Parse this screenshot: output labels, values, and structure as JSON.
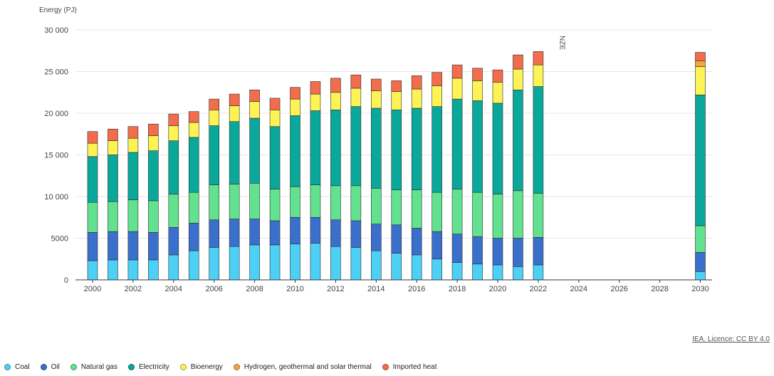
{
  "chart_data": {
    "type": "bar",
    "stacked": true,
    "ylabel": "Energy (PJ)",
    "ylim": [
      0,
      30000
    ],
    "ytick_values": [
      0,
      5000,
      10000,
      15000,
      20000,
      25000,
      30000
    ],
    "ytick_labels": [
      "0",
      "5000",
      "10 000",
      "15 000",
      "20 000",
      "25 000",
      "30 000"
    ],
    "xtick_values": [
      2000,
      2002,
      2004,
      2006,
      2008,
      2010,
      2012,
      2014,
      2016,
      2018,
      2020,
      2022,
      2024,
      2026,
      2028,
      2030
    ],
    "xtick_labels": [
      "2000",
      "2002",
      "2004",
      "2006",
      "2008",
      "2010",
      "2012",
      "2014",
      "2016",
      "2018",
      "2020",
      "2022",
      "2024",
      "2026",
      "2028",
      "2030"
    ],
    "xlim": [
      2000,
      2030
    ],
    "annotation": {
      "text": "NZE",
      "x": 2023
    },
    "categories": [
      2000,
      2001,
      2002,
      2003,
      2004,
      2005,
      2006,
      2007,
      2008,
      2009,
      2010,
      2011,
      2012,
      2013,
      2014,
      2015,
      2016,
      2017,
      2018,
      2019,
      2020,
      2021,
      2022,
      2030
    ],
    "series": [
      {
        "name": "Coal",
        "color": "#4dd0f5",
        "values": [
          2300,
          2400,
          2400,
          2400,
          3000,
          3500,
          3900,
          4000,
          4200,
          4200,
          4300,
          4400,
          4000,
          3900,
          3500,
          3200,
          3000,
          2500,
          2100,
          1900,
          1800,
          1600,
          1800,
          1000
        ]
      },
      {
        "name": "Oil",
        "color": "#3a6fcc",
        "values": [
          3400,
          3400,
          3400,
          3300,
          3300,
          3300,
          3300,
          3300,
          3100,
          2900,
          3200,
          3100,
          3200,
          3200,
          3200,
          3400,
          3200,
          3300,
          3400,
          3300,
          3200,
          3400,
          3300,
          2300
        ]
      },
      {
        "name": "Natural gas",
        "color": "#62e28e",
        "values": [
          3600,
          3600,
          3800,
          3800,
          4000,
          3700,
          4200,
          4200,
          4300,
          3800,
          3700,
          3900,
          4100,
          4200,
          4300,
          4200,
          4600,
          4700,
          5400,
          5300,
          5300,
          5700,
          5300,
          3200
        ]
      },
      {
        "name": "Electricity",
        "color": "#0aa89a",
        "values": [
          5500,
          5600,
          5700,
          6000,
          6400,
          6600,
          7100,
          7500,
          7800,
          7500,
          8500,
          8900,
          9100,
          9500,
          9600,
          9600,
          9800,
          10300,
          10800,
          11000,
          10900,
          12100,
          12800,
          15700
        ]
      },
      {
        "name": "Bioenergy",
        "color": "#fdf355",
        "values": [
          1600,
          1700,
          1700,
          1800,
          1800,
          1800,
          1900,
          1900,
          2000,
          2000,
          2000,
          2000,
          2100,
          2200,
          2100,
          2200,
          2300,
          2500,
          2500,
          2400,
          2500,
          2500,
          2600,
          3400
        ]
      },
      {
        "name": "Hydrogen, geothermal and solar thermal",
        "color": "#f6a640",
        "values": [
          0,
          0,
          0,
          0,
          0,
          0,
          0,
          0,
          0,
          0,
          0,
          0,
          0,
          0,
          0,
          0,
          0,
          0,
          0,
          0,
          0,
          0,
          0,
          700
        ]
      },
      {
        "name": "Imported heat",
        "color": "#f36d4c",
        "values": [
          1400,
          1400,
          1400,
          1400,
          1400,
          1300,
          1300,
          1400,
          1400,
          1400,
          1400,
          1500,
          1700,
          1600,
          1400,
          1300,
          1600,
          1600,
          1600,
          1500,
          1500,
          1700,
          1600,
          1000
        ]
      }
    ]
  },
  "source": {
    "text": "IEA. Licence: CC BY 4.0"
  }
}
